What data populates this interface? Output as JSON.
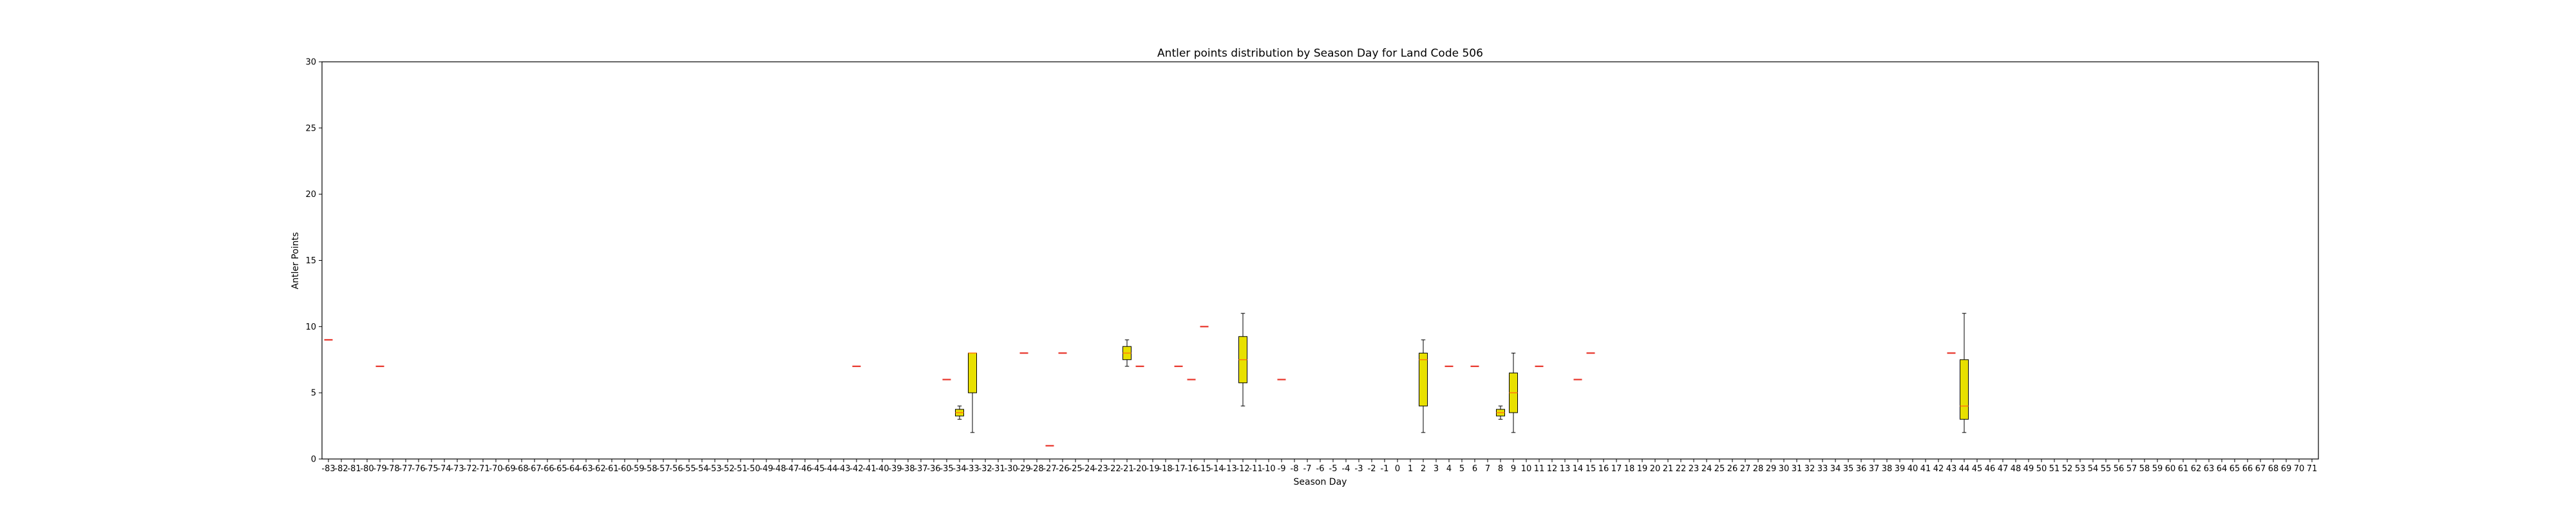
{
  "chart_data": {
    "type": "box",
    "title": "Antler points distribution by Season Day for Land Code 506",
    "xlabel": "Season Day",
    "ylabel": "Antler Points",
    "ylim": [
      0,
      30
    ],
    "yticks": [
      0,
      5,
      10,
      15,
      20,
      25,
      30
    ],
    "x_range": [
      -83,
      71
    ],
    "box_color": "#e8e000",
    "median_color": "#ff7f0e",
    "flier_color": "#e8342a",
    "boxes": [
      {
        "day": -83,
        "q1": 9,
        "median": 9,
        "q3": 9,
        "whislo": 9,
        "whishi": 9
      },
      {
        "day": -79,
        "q1": 7,
        "median": 7,
        "q3": 7,
        "whislo": 7,
        "whishi": 7
      },
      {
        "day": -42,
        "q1": 7,
        "median": 7,
        "q3": 7,
        "whislo": 7,
        "whishi": 7
      },
      {
        "day": -35,
        "q1": 6,
        "median": 6,
        "q3": 6,
        "whislo": 6,
        "whishi": 6
      },
      {
        "day": -34,
        "q1": 3.25,
        "median": 3.5,
        "q3": 3.75,
        "whislo": 3,
        "whishi": 4
      },
      {
        "day": -33,
        "q1": 5,
        "median": 8,
        "q3": 8,
        "whislo": 2,
        "whishi": 8
      },
      {
        "day": -29,
        "q1": 8,
        "median": 8,
        "q3": 8,
        "whislo": 8,
        "whishi": 8
      },
      {
        "day": -27,
        "q1": 1,
        "median": 1,
        "q3": 1,
        "whislo": 1,
        "whishi": 1
      },
      {
        "day": -26,
        "q1": 8,
        "median": 8,
        "q3": 8,
        "whislo": 8,
        "whishi": 8
      },
      {
        "day": -21,
        "q1": 7.5,
        "median": 8,
        "q3": 8.5,
        "whislo": 7,
        "whishi": 9
      },
      {
        "day": -20,
        "q1": 7,
        "median": 7,
        "q3": 7,
        "whislo": 7,
        "whishi": 7
      },
      {
        "day": -17,
        "q1": 7,
        "median": 7,
        "q3": 7,
        "whislo": 7,
        "whishi": 7
      },
      {
        "day": -16,
        "q1": 6,
        "median": 6,
        "q3": 6,
        "whislo": 6,
        "whishi": 6
      },
      {
        "day": -15,
        "q1": 10,
        "median": 10,
        "q3": 10,
        "whislo": 10,
        "whishi": 10
      },
      {
        "day": -12,
        "q1": 5.75,
        "median": 7.5,
        "q3": 9.25,
        "whislo": 4,
        "whishi": 11
      },
      {
        "day": -9,
        "q1": 6,
        "median": 6,
        "q3": 6,
        "whislo": 6,
        "whishi": 6
      },
      {
        "day": 2,
        "q1": 4,
        "median": 7.5,
        "q3": 8,
        "whislo": 2,
        "whishi": 9
      },
      {
        "day": 4,
        "q1": 7,
        "median": 7,
        "q3": 7,
        "whislo": 7,
        "whishi": 7
      },
      {
        "day": 6,
        "q1": 7,
        "median": 7,
        "q3": 7,
        "whislo": 7,
        "whishi": 7
      },
      {
        "day": 8,
        "q1": 3.25,
        "median": 3.5,
        "q3": 3.75,
        "whislo": 3,
        "whishi": 4
      },
      {
        "day": 9,
        "q1": 3.5,
        "median": 5,
        "q3": 6.5,
        "whislo": 2,
        "whishi": 8
      },
      {
        "day": 11,
        "q1": 7,
        "median": 7,
        "q3": 7,
        "whislo": 7,
        "whishi": 7
      },
      {
        "day": 14,
        "q1": 6,
        "median": 6,
        "q3": 6,
        "whislo": 6,
        "whishi": 6
      },
      {
        "day": 15,
        "q1": 8,
        "median": 8,
        "q3": 8,
        "whislo": 8,
        "whishi": 8
      },
      {
        "day": 43,
        "q1": 8,
        "median": 8,
        "q3": 8,
        "whislo": 8,
        "whishi": 8
      },
      {
        "day": 44,
        "q1": 3,
        "median": 4,
        "q3": 7.5,
        "whislo": 2,
        "whishi": 11
      }
    ]
  }
}
